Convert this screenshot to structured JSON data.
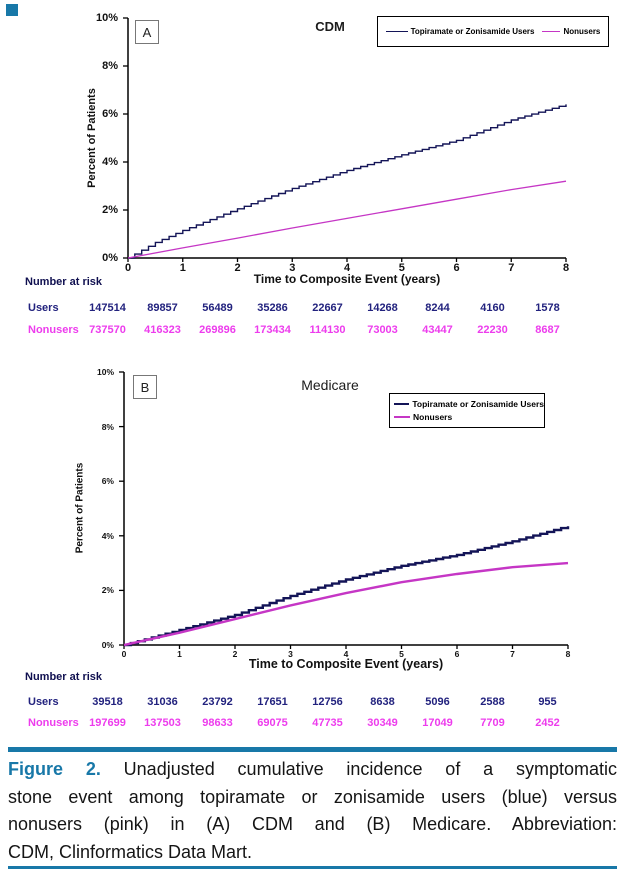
{
  "accent_teal": "#1878a8",
  "colors": {
    "users_line": "#131457",
    "nonusers_line": "#c536c5",
    "users_text": "#22227e",
    "nonusers_text": "#ed3ced",
    "axis": "#000000"
  },
  "chart_data": [
    {
      "type": "line",
      "panel_label": "A",
      "title": "CDM",
      "ylabel": "Percent of Patients",
      "xlabel": "Time to Composite Event (years)",
      "xlim": [
        0,
        8
      ],
      "ylim": [
        0,
        10
      ],
      "yticks": [
        0,
        2,
        4,
        6,
        8,
        10
      ],
      "ytick_labels": [
        "0%",
        "2%",
        "4%",
        "6%",
        "8%",
        "10%"
      ],
      "xticks": [
        0,
        1,
        2,
        3,
        4,
        5,
        6,
        7,
        8
      ],
      "xtick_labels": [
        "0",
        "1",
        "2",
        "3",
        "4",
        "5",
        "6",
        "7",
        "8"
      ],
      "grid": false,
      "legend_position": "top-right-inline",
      "series": [
        {
          "name": "Topiramate or Zonisamide Users",
          "color": "#131457",
          "style": "step",
          "width": 1.4,
          "x": [
            0,
            0.5,
            1,
            2,
            3,
            4,
            5,
            6,
            7,
            8
          ],
          "y": [
            0,
            0.65,
            1.15,
            2.05,
            2.9,
            3.65,
            4.3,
            4.9,
            5.75,
            6.4
          ]
        },
        {
          "name": "Nonusers",
          "color": "#c536c5",
          "style": "line",
          "width": 1.3,
          "x": [
            0,
            1,
            2,
            3,
            4,
            5,
            6,
            7,
            8
          ],
          "y": [
            0,
            0.42,
            0.83,
            1.25,
            1.65,
            2.05,
            2.45,
            2.85,
            3.2
          ]
        }
      ]
    },
    {
      "type": "line",
      "panel_label": "B",
      "title": "Medicare",
      "ylabel": "Percent of Patients",
      "xlabel": "Time to Composite Event (years)",
      "xlim": [
        0,
        8
      ],
      "ylim": [
        0,
        10
      ],
      "yticks": [
        0,
        2,
        4,
        6,
        8,
        10
      ],
      "ytick_labels": [
        "0%",
        "2%",
        "4%",
        "6%",
        "8%",
        "10%"
      ],
      "xticks": [
        0,
        1,
        2,
        3,
        4,
        5,
        6,
        7,
        8
      ],
      "xtick_labels": [
        "0",
        "1",
        "2",
        "3",
        "4",
        "5",
        "6",
        "7",
        "8"
      ],
      "grid": false,
      "legend_position": "top-right-stacked",
      "series": [
        {
          "name": "Topiramate or Zonisamide Users",
          "color": "#131457",
          "style": "step",
          "width": 2.4,
          "x": [
            0,
            1,
            2,
            3,
            4,
            5,
            6,
            7,
            8
          ],
          "y": [
            0,
            0.55,
            1.1,
            1.8,
            2.4,
            2.9,
            3.3,
            3.8,
            4.35
          ]
        },
        {
          "name": "Nonusers",
          "color": "#c536c5",
          "style": "line",
          "width": 2.4,
          "x": [
            0,
            1,
            2,
            3,
            4,
            5,
            6,
            7,
            8
          ],
          "y": [
            0,
            0.45,
            0.95,
            1.45,
            1.9,
            2.3,
            2.6,
            2.85,
            3.0
          ]
        }
      ]
    }
  ],
  "risk_tables": [
    {
      "panel": "A",
      "heading": "Number at risk",
      "rows": [
        {
          "label": "Users",
          "color": "#22227e",
          "values": [
            "147514",
            "89857",
            "56489",
            "35286",
            "22667",
            "14268",
            "8244",
            "4160",
            "1578"
          ]
        },
        {
          "label": "Nonusers",
          "color": "#ed3ced",
          "values": [
            "737570",
            "416323",
            "269896",
            "173434",
            "114130",
            "73003",
            "43447",
            "22230",
            "8687"
          ]
        }
      ]
    },
    {
      "panel": "B",
      "heading": "Number at risk",
      "rows": [
        {
          "label": "Users",
          "color": "#22227e",
          "values": [
            "39518",
            "31036",
            "23792",
            "17651",
            "12756",
            "8638",
            "5096",
            "2588",
            "955"
          ]
        },
        {
          "label": "Nonusers",
          "color": "#ed3ced",
          "values": [
            "197699",
            "137503",
            "98633",
            "69075",
            "47735",
            "30349",
            "17049",
            "7709",
            "2452"
          ]
        }
      ]
    }
  ],
  "caption": {
    "lead": "Figure 2.",
    "lines": [
      " Unadjusted cumulative incidence of a symptomatic",
      "stone event among topiramate or zonisamide users (blue) versus",
      "nonusers (pink) in (A) CDM and (B) Medicare. Abbreviation:",
      "CDM, Clinformatics Data Mart."
    ]
  }
}
